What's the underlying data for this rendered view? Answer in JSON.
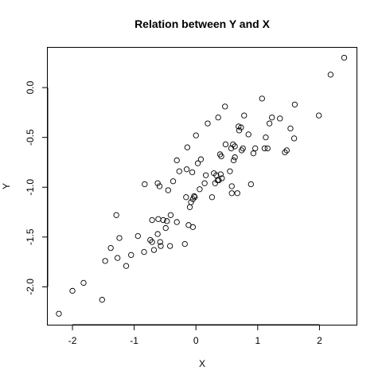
{
  "chart_data": {
    "type": "scatter",
    "title": "Relation between Y and X",
    "xlabel": "X",
    "ylabel": "Y",
    "xlim": [
      -2.4,
      2.6
    ],
    "ylim": [
      -2.38,
      0.4
    ],
    "xticks": [
      -2,
      -1,
      0,
      1,
      2
    ],
    "xtick_labels": [
      "-2",
      "-1",
      "0",
      "1",
      "2"
    ],
    "yticks": [
      -2.0,
      -1.5,
      -1.0,
      -0.5,
      0.0
    ],
    "ytick_labels": [
      "-2.0",
      "-1.5",
      "-1.0",
      "-0.5",
      "0.0"
    ],
    "grid": false,
    "points": [
      [
        -2.22,
        -2.27
      ],
      [
        -2.0,
        -2.04
      ],
      [
        -1.82,
        -1.96
      ],
      [
        -1.52,
        -2.13
      ],
      [
        -1.47,
        -1.74
      ],
      [
        -1.38,
        -1.61
      ],
      [
        -1.29,
        -1.28
      ],
      [
        -1.27,
        -1.71
      ],
      [
        -1.24,
        -1.51
      ],
      [
        -1.13,
        -1.79
      ],
      [
        -1.05,
        -1.68
      ],
      [
        -0.94,
        -1.49
      ],
      [
        -0.84,
        -1.65
      ],
      [
        -0.83,
        -0.97
      ],
      [
        -0.74,
        -1.53
      ],
      [
        -0.71,
        -1.33
      ],
      [
        -0.71,
        -1.55
      ],
      [
        -0.68,
        -1.63
      ],
      [
        -0.62,
        -0.96
      ],
      [
        -0.62,
        -1.47
      ],
      [
        -0.61,
        -1.32
      ],
      [
        -0.59,
        -0.99
      ],
      [
        -0.58,
        -1.55
      ],
      [
        -0.57,
        -1.59
      ],
      [
        -0.53,
        -1.33
      ],
      [
        -0.49,
        -1.41
      ],
      [
        -0.47,
        -1.34
      ],
      [
        -0.45,
        -1.03
      ],
      [
        -0.42,
        -1.59
      ],
      [
        -0.41,
        -1.28
      ],
      [
        -0.37,
        -0.94
      ],
      [
        -0.31,
        -0.73
      ],
      [
        -0.31,
        -1.35
      ],
      [
        -0.27,
        -0.84
      ],
      [
        -0.18,
        -1.57
      ],
      [
        -0.16,
        -1.1
      ],
      [
        -0.15,
        -0.82
      ],
      [
        -0.14,
        -0.6
      ],
      [
        -0.12,
        -1.38
      ],
      [
        -0.1,
        -1.2
      ],
      [
        -0.08,
        -1.15
      ],
      [
        -0.06,
        -0.85
      ],
      [
        -0.05,
        -1.12
      ],
      [
        -0.05,
        -1.4
      ],
      [
        -0.03,
        -1.09
      ],
      [
        -0.02,
        -1.1
      ],
      [
        0.0,
        -0.48
      ],
      [
        0.03,
        -0.76
      ],
      [
        0.06,
        -1.02
      ],
      [
        0.08,
        -0.72
      ],
      [
        0.14,
        -0.96
      ],
      [
        0.16,
        -0.88
      ],
      [
        0.19,
        -0.36
      ],
      [
        0.26,
        -1.1
      ],
      [
        0.29,
        -0.86
      ],
      [
        0.31,
        -0.96
      ],
      [
        0.33,
        -0.88
      ],
      [
        0.35,
        -0.93
      ],
      [
        0.36,
        -0.3
      ],
      [
        0.37,
        -0.93
      ],
      [
        0.39,
        -0.67
      ],
      [
        0.4,
        -0.87
      ],
      [
        0.41,
        -0.69
      ],
      [
        0.42,
        -0.91
      ],
      [
        0.47,
        -0.19
      ],
      [
        0.48,
        -0.57
      ],
      [
        0.55,
        -0.84
      ],
      [
        0.57,
        -0.61
      ],
      [
        0.58,
        -0.99
      ],
      [
        0.58,
        -1.06
      ],
      [
        0.6,
        -0.57
      ],
      [
        0.61,
        -0.73
      ],
      [
        0.63,
        -0.7
      ],
      [
        0.63,
        -0.59
      ],
      [
        0.67,
        -1.06
      ],
      [
        0.69,
        -0.39
      ],
      [
        0.7,
        -0.43
      ],
      [
        0.73,
        -0.4
      ],
      [
        0.74,
        -0.63
      ],
      [
        0.76,
        -0.61
      ],
      [
        0.78,
        -0.28
      ],
      [
        0.85,
        -0.47
      ],
      [
        0.89,
        -0.97
      ],
      [
        0.93,
        -0.66
      ],
      [
        0.96,
        -0.61
      ],
      [
        1.07,
        -0.11
      ],
      [
        1.11,
        -0.61
      ],
      [
        1.13,
        -0.5
      ],
      [
        1.16,
        -0.61
      ],
      [
        1.19,
        -0.36
      ],
      [
        1.23,
        -0.3
      ],
      [
        1.36,
        -0.31
      ],
      [
        1.44,
        -0.65
      ],
      [
        1.47,
        -0.63
      ],
      [
        1.53,
        -0.41
      ],
      [
        1.59,
        -0.51
      ],
      [
        1.6,
        -0.17
      ],
      [
        1.99,
        -0.28
      ],
      [
        2.18,
        0.13
      ],
      [
        2.4,
        0.3
      ]
    ]
  }
}
